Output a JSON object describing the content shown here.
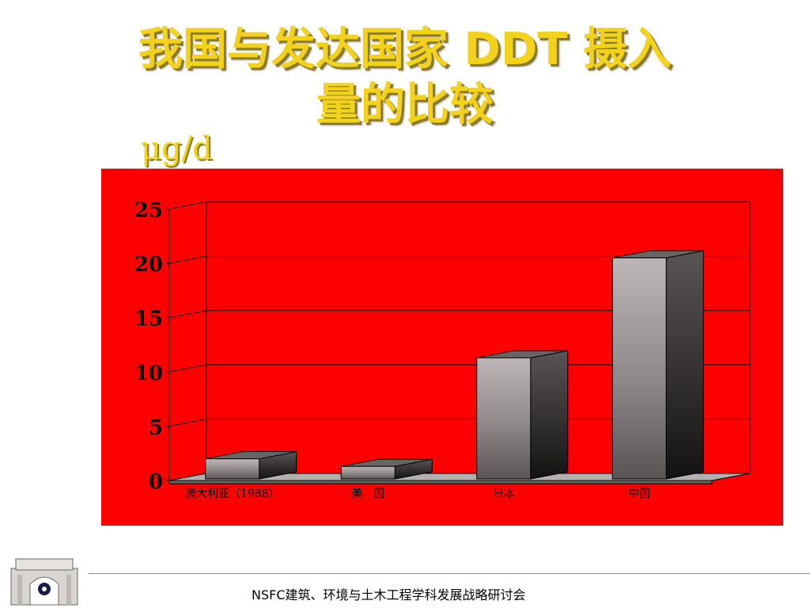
{
  "slide": {
    "title": "我国与发达国家 DDT 摄入\n量的比较",
    "unit_label": "μg/d",
    "footer": "NSFC建筑、环境与土木工程学科发展战略研讨会"
  },
  "colors": {
    "title": "#f3d21b",
    "panel": "#ff0000",
    "bar_front": "#a09a9a",
    "bar_side": "#3a3636",
    "bar_top": "#6a6464",
    "grid": "#000000"
  },
  "chart_data": {
    "type": "bar",
    "title": "",
    "xlabel": "",
    "ylabel": "μg/d",
    "categories": [
      "澳大利亚（1988）",
      "美　国",
      "日本",
      "中国"
    ],
    "values": [
      2,
      1.3,
      11.3,
      20.5
    ],
    "yticks": [
      0,
      5,
      10,
      15,
      20,
      25
    ],
    "ylim": [
      0,
      25
    ],
    "grid": true,
    "legend": "none"
  }
}
